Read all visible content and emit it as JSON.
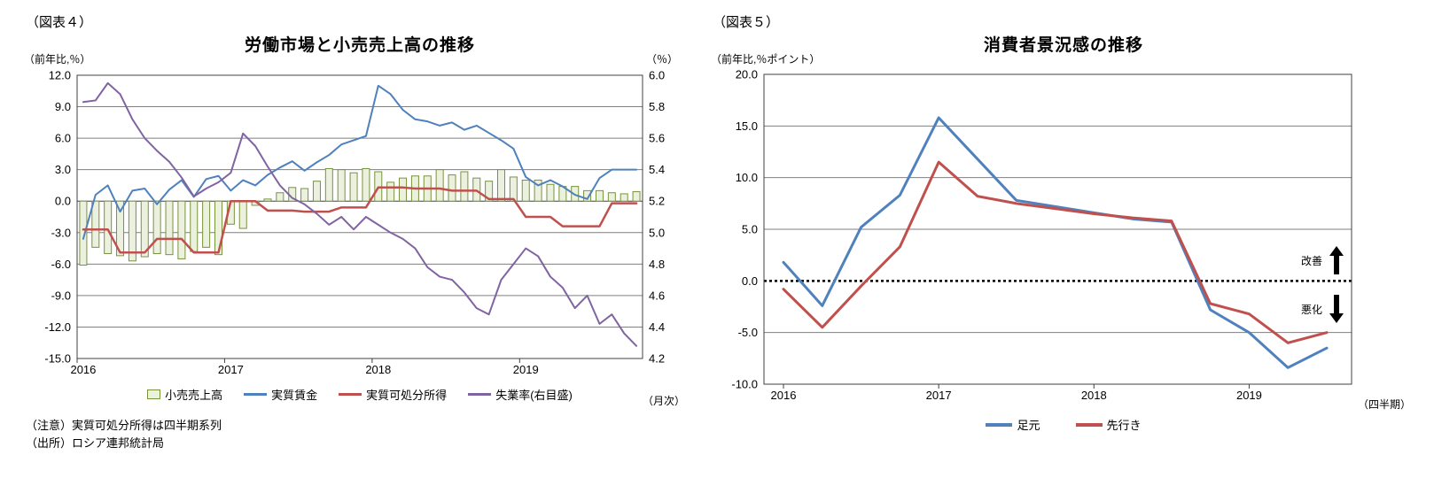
{
  "figure4": {
    "tag": "（図表４）",
    "title": "労働市場と小売売上高の推移",
    "y_left_unit": "（前年比,％）",
    "y_right_unit": "（％）",
    "x_unit": "（月次）",
    "legend": [
      "小売売上高",
      "実質賃金",
      "実質可処分所得",
      "失業率(右目盛)"
    ],
    "notes": [
      "（注意）実質可処分所得は四半期系列",
      "（出所）ロシア連邦統計局"
    ]
  },
  "figure5": {
    "tag": "（図表５）",
    "title": "消費者景況感の推移",
    "y_unit": "（前年比,％ポイント）",
    "x_unit": "（四半期）",
    "legend": [
      "足元",
      "先行き"
    ]
  },
  "colors": {
    "bar_fill": "#EBF1DE",
    "bar_border": "#77933C",
    "blue": "#4F81BD",
    "red": "#C0504D",
    "purple": "#8064A2",
    "grid": "#7F7F7F",
    "frame": "#404040"
  },
  "chart_data": [
    {
      "id": "figure4",
      "type": "bar",
      "subtype": "combo-bar-line-dual-axis",
      "title": "労働市場と小売売上高の推移",
      "x_frequency": "monthly",
      "x_tick_labels": [
        "2016",
        "2017",
        "2018",
        "2019"
      ],
      "x_year_start_index": [
        0,
        12,
        24,
        36
      ],
      "n_points": 46,
      "grid": true,
      "legend_position": "bottom",
      "y_left": {
        "min": -15.0,
        "max": 12.0,
        "step": 3.0,
        "unit": "前年比,％",
        "tick_labels": [
          "12.0",
          "9.0",
          "6.0",
          "3.0",
          "0.0",
          "-3.0",
          "-6.0",
          "-9.0",
          "-12.0",
          "-15.0"
        ]
      },
      "y_right": {
        "min": 4.2,
        "max": 6.0,
        "step": 0.2,
        "unit": "％",
        "tick_labels": [
          "6.0",
          "5.8",
          "5.6",
          "5.4",
          "5.2",
          "5.0",
          "4.8",
          "4.6",
          "4.4",
          "4.2"
        ]
      },
      "series": [
        {
          "name": "小売売上高",
          "type": "bar",
          "axis": "left",
          "color": "#EBF1DE",
          "border": "#77933C",
          "values": [
            -6.1,
            -4.4,
            -5.0,
            -5.2,
            -5.7,
            -5.3,
            -5.0,
            -5.1,
            -5.5,
            -4.8,
            -4.4,
            -5.1,
            -2.2,
            -2.6,
            -0.4,
            0.2,
            0.8,
            1.3,
            1.2,
            1.9,
            3.1,
            3.0,
            2.7,
            3.1,
            2.8,
            1.8,
            2.2,
            2.4,
            2.4,
            3.0,
            2.5,
            2.8,
            2.2,
            1.9,
            3.0,
            2.3,
            2.0,
            2.0,
            1.6,
            1.4,
            1.4,
            1.0,
            1.0,
            0.8,
            0.7,
            0.9
          ]
        },
        {
          "name": "実質賃金",
          "type": "line",
          "axis": "left",
          "color": "#4F81BD",
          "width": 2,
          "values": [
            -3.6,
            0.6,
            1.5,
            -1.0,
            1.0,
            1.2,
            -0.3,
            1.1,
            2.0,
            0.4,
            2.1,
            2.4,
            1.0,
            2.0,
            1.5,
            2.5,
            3.2,
            3.8,
            2.9,
            3.7,
            4.4,
            5.4,
            5.8,
            6.2,
            11.0,
            10.2,
            8.7,
            7.8,
            7.6,
            7.2,
            7.5,
            6.8,
            7.2,
            6.5,
            5.8,
            5.0,
            2.3,
            1.5,
            2.0,
            1.4,
            0.6,
            0.2,
            2.2,
            3.0,
            3.0,
            3.0
          ]
        },
        {
          "name": "実質可処分所得",
          "type": "line",
          "axis": "left",
          "color": "#C0504D",
          "width": 2.5,
          "note": "四半期系列",
          "values": [
            -2.7,
            -2.7,
            -2.7,
            -4.9,
            -4.9,
            -4.9,
            -3.6,
            -3.6,
            -3.6,
            -4.9,
            -4.9,
            -4.9,
            0.0,
            0.0,
            0.0,
            -0.9,
            -0.9,
            -0.9,
            -1.0,
            -1.0,
            -1.0,
            -0.6,
            -0.6,
            -0.6,
            1.3,
            1.3,
            1.3,
            1.2,
            1.2,
            1.2,
            1.0,
            1.0,
            1.0,
            0.2,
            0.2,
            0.2,
            -1.5,
            -1.5,
            -1.5,
            -2.4,
            -2.4,
            -2.4,
            -2.4,
            -0.2,
            -0.2,
            -0.2
          ]
        },
        {
          "name": "失業率(右目盛)",
          "type": "line",
          "axis": "right",
          "color": "#8064A2",
          "width": 2,
          "values": [
            5.83,
            5.84,
            5.95,
            5.88,
            5.72,
            5.6,
            5.52,
            5.45,
            5.35,
            5.23,
            5.28,
            5.32,
            5.38,
            5.63,
            5.55,
            5.42,
            5.3,
            5.22,
            5.18,
            5.12,
            5.05,
            5.1,
            5.02,
            5.1,
            5.05,
            5.0,
            4.96,
            4.9,
            4.78,
            4.72,
            4.7,
            4.62,
            4.52,
            4.48,
            4.7,
            4.8,
            4.9,
            4.85,
            4.72,
            4.65,
            4.52,
            4.6,
            4.42,
            4.48,
            4.36,
            4.28
          ]
        }
      ]
    },
    {
      "id": "figure5",
      "type": "line",
      "title": "消費者景況感の推移",
      "x_frequency": "quarterly",
      "x_tick_labels": [
        "2016",
        "2017",
        "2018",
        "2019"
      ],
      "x_year_start_index": [
        0,
        4,
        8,
        12
      ],
      "n_points": 15,
      "grid": true,
      "legend_position": "bottom",
      "ylim": [
        -10.0,
        20.0
      ],
      "y_step": 5.0,
      "y_tick_labels": [
        "20.0",
        "15.0",
        "10.0",
        "5.0",
        "0.0",
        "-5.0",
        "-10.0"
      ],
      "zero_line_style": "dotted-bold",
      "series": [
        {
          "name": "足元",
          "color": "#4F81BD",
          "width": 3,
          "values": [
            1.8,
            -2.4,
            5.2,
            8.3,
            15.8,
            11.8,
            7.8,
            7.2,
            6.6,
            6.0,
            5.7,
            -2.8,
            -5.0,
            -8.4,
            -6.5
          ]
        },
        {
          "name": "先行き",
          "color": "#C0504D",
          "width": 3,
          "values": [
            -0.8,
            -4.5,
            -0.5,
            3.3,
            11.5,
            8.2,
            7.5,
            7.0,
            6.5,
            6.1,
            5.8,
            -2.2,
            -3.2,
            -6.0,
            -5.0
          ]
        }
      ],
      "annotations": [
        {
          "text": "改善",
          "arrow": "up"
        },
        {
          "text": "悪化",
          "arrow": "down"
        }
      ]
    }
  ]
}
